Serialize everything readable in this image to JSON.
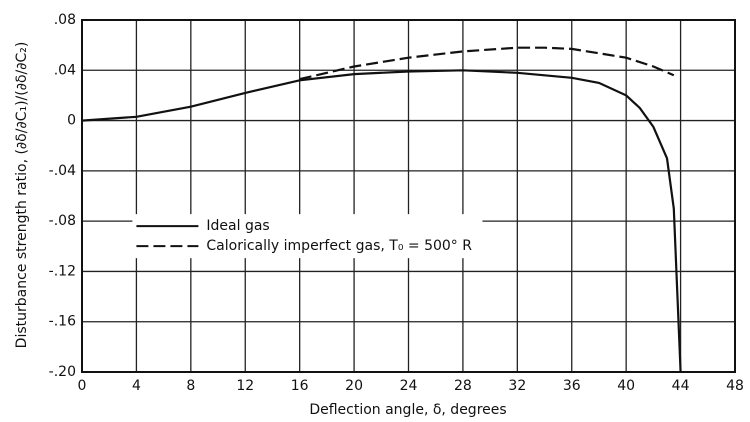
{
  "chart_data": {
    "type": "line",
    "xlabel": "Deflection angle, δ, degrees",
    "ylabel": "Disturbance strength ratio, (∂δ/∂C₁)/(∂δ/∂C₂)",
    "series": [
      {
        "name": "Ideal gas",
        "color": "#111111",
        "line_style": "solid",
        "x": [
          0,
          4,
          8,
          12,
          16,
          20,
          24,
          28,
          32,
          36,
          38,
          40,
          41,
          42,
          43,
          43.5,
          44
        ],
        "values": [
          0,
          0.003,
          0.011,
          0.022,
          0.032,
          0.037,
          0.039,
          0.04,
          0.038,
          0.034,
          0.03,
          0.02,
          0.01,
          -0.005,
          -0.03,
          -0.07,
          -0.2
        ]
      },
      {
        "name": "Calorically imperfect gas, T₀ = 500° R",
        "color": "#111111",
        "line_style": "dashed",
        "x": [
          16,
          20,
          24,
          28,
          32,
          34,
          36,
          40,
          42,
          43.5
        ],
        "values": [
          0.033,
          0.043,
          0.05,
          0.055,
          0.058,
          0.058,
          0.057,
          0.05,
          0.043,
          0.036
        ]
      }
    ],
    "xlim": [
      0,
      48
    ],
    "xticks": [
      0,
      4,
      8,
      12,
      16,
      20,
      24,
      28,
      32,
      36,
      40,
      44,
      48
    ],
    "ylim": [
      -0.2,
      0.08
    ],
    "yticks": [
      {
        "value": -0.2,
        "label": "-.20"
      },
      {
        "value": -0.16,
        "label": "-.16"
      },
      {
        "value": -0.12,
        "label": "-.12"
      },
      {
        "value": -0.08,
        "label": "-.08"
      },
      {
        "value": -0.04,
        "label": "-.04"
      },
      0,
      {
        "value": 0.04,
        "label": ".04"
      },
      {
        "value": 0.08,
        "label": ".08"
      }
    ],
    "grid": true,
    "legend": "lower left"
  }
}
